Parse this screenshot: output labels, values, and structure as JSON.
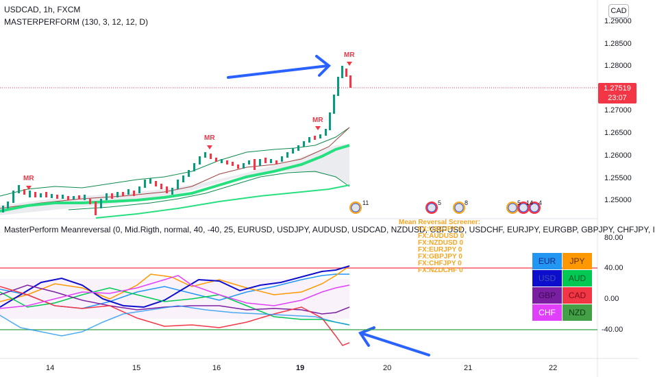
{
  "header": {
    "symbol_title": "USDCAD, 1h, FXCM",
    "indicator_main": "MASTERPERFORM (130, 3, 12, 12, D)",
    "indicator_sub": "MasterPerform Meanreversal (0, Mid.Rigth, normal, 40, -40, 25, EURUSD, USDJPY, AUDUSD, USDCAD, NZDUSD, GBPUSD, USDCHF, EURJPY, EURGBP, GBPJPY, CHFJPY, I",
    "currency_button": "CAD"
  },
  "price_axis": [
    "1.29000",
    "1.28500",
    "1.28000",
    "1.27000",
    "1.26500",
    "1.26000",
    "1.25500",
    "1.25000"
  ],
  "last_price": {
    "value": "1.27519",
    "countdown": "23:07",
    "color": "#f23645"
  },
  "osc_axis": [
    "80.00",
    "40.00",
    "0.00",
    "-40.00"
  ],
  "time_axis": [
    "14",
    "15",
    "16",
    "19",
    "20",
    "21",
    "22"
  ],
  "signals": {
    "label": "MR",
    "color": "#f23645"
  },
  "event_counts": [
    "11",
    "5",
    "8",
    "5",
    "14",
    "4"
  ],
  "screener": {
    "title": "Mean Reversal Screener:",
    "items": [
      "FX:USDJPY 0",
      "FX:AUDUSD 0",
      "FX:NZDUSD 0",
      "FX:EURJPY 0",
      "FX:GBPJPY 0",
      "FX:CHFJPY 0",
      "FX:NZDCHF 0"
    ],
    "color": "#f5a623"
  },
  "currency_grid": [
    {
      "label": "EUR",
      "bg": "#2196f3",
      "fg": "#1a237e"
    },
    {
      "label": "JPY",
      "bg": "#ff9800",
      "fg": "#5d2e00"
    },
    {
      "label": "USD",
      "bg": "#0d0dcc",
      "fg": "#3f51b5"
    },
    {
      "label": "AUD",
      "bg": "#00c853",
      "fg": "#005a24"
    },
    {
      "label": "GBP",
      "bg": "#7b1fa2",
      "fg": "#3d0b55"
    },
    {
      "label": "CAD",
      "bg": "#f23645",
      "fg": "#7a0d16"
    },
    {
      "label": "CHF",
      "bg": "#e040fb",
      "fg": "#ffffff"
    },
    {
      "label": "NZD",
      "bg": "#43a047",
      "fg": "#0d3b10"
    }
  ],
  "colors": {
    "bull": "#089981",
    "bear": "#f23645",
    "ma_fast": "#26e07f",
    "arrow": "#2962ff",
    "band": "#0b8a4a",
    "upper_level": "#f23645",
    "lower_level": "#2ea043"
  }
}
